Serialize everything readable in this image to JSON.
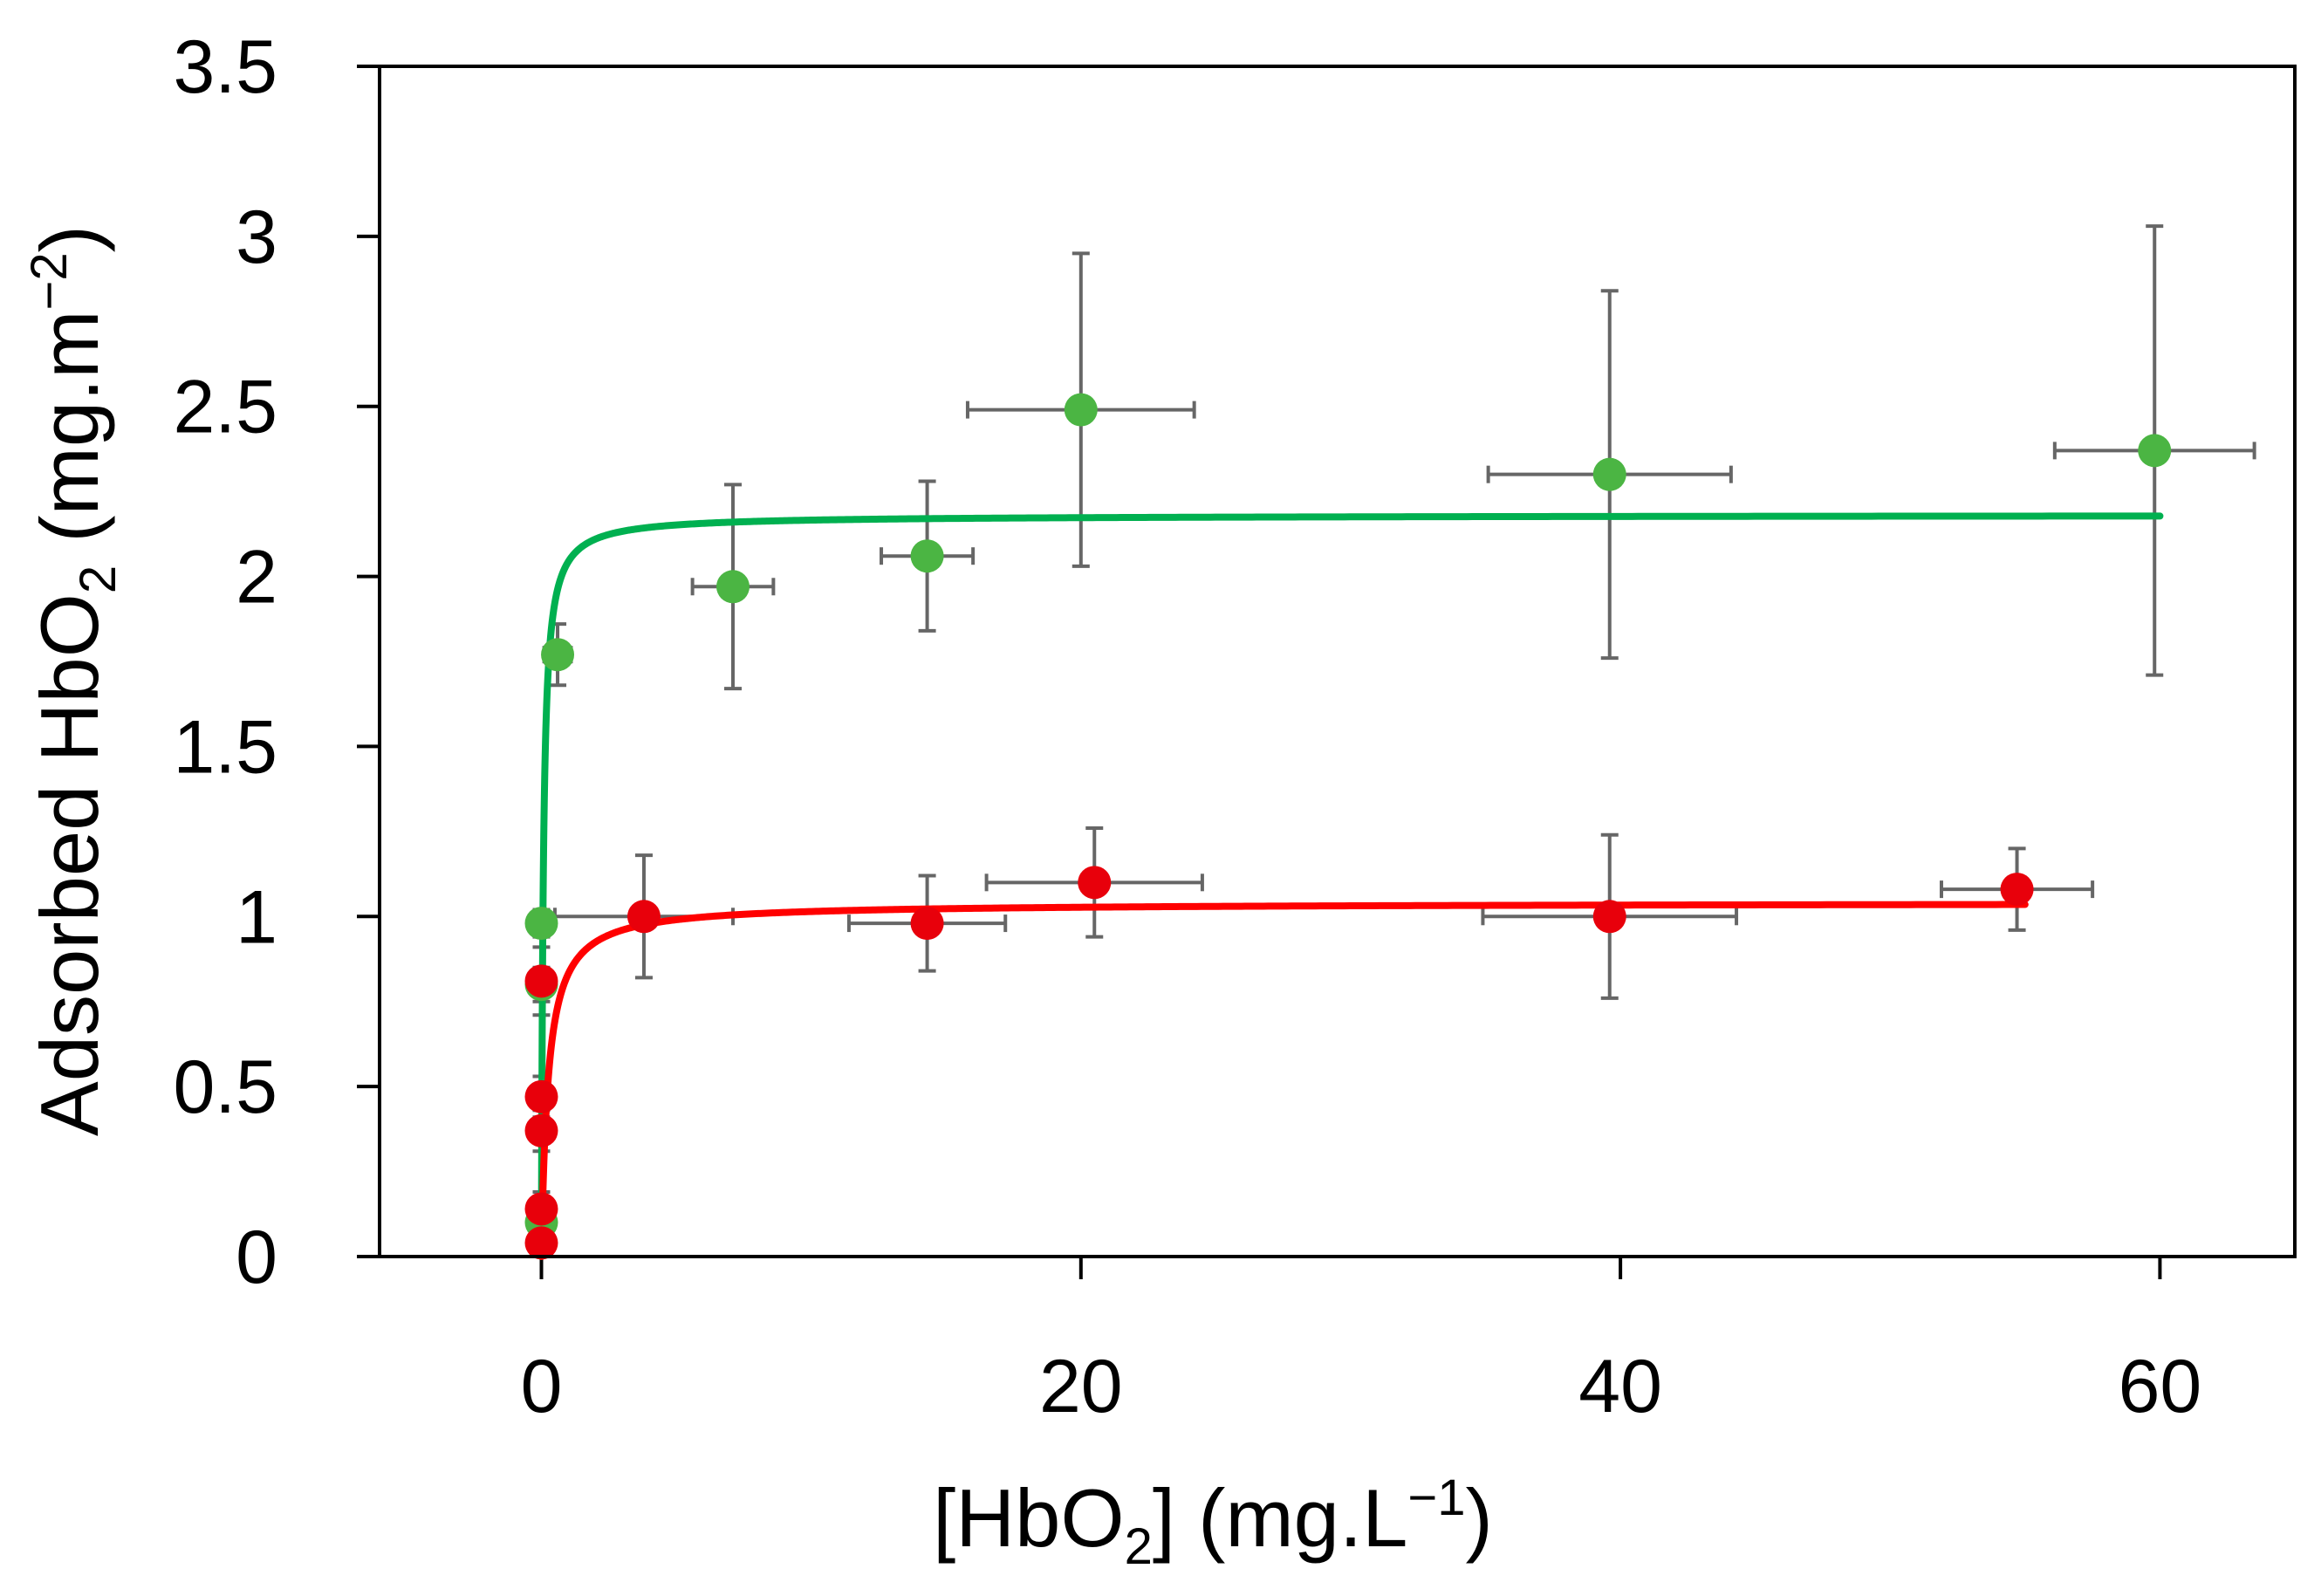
{
  "chart_data": {
    "type": "scatter",
    "xlabel": {
      "pre": "[HbO",
      "sub": "2",
      "mid": "] (mg.L",
      "sup": "−1",
      "post": ")"
    },
    "ylabel": {
      "pre": "Adsorbed HbO",
      "sub": "2",
      "mid": " (mg.m",
      "sup": "−2",
      "post": ")"
    },
    "xlim": [
      -6,
      65
    ],
    "ylim": [
      0,
      3.5
    ],
    "xticks": [
      0,
      20,
      40,
      60
    ],
    "xtick_labels": [
      "0",
      "20",
      "40",
      "60"
    ],
    "yticks": [
      0,
      0.5,
      1,
      1.5,
      2,
      2.5,
      3,
      3.5
    ],
    "ytick_labels": [
      "0",
      "0.5",
      "1",
      "1.5",
      "2",
      "2.5",
      "3",
      "3.5"
    ],
    "colors": {
      "green_points": "#4bb543",
      "green_line": "#00b050",
      "red_points": "#e8000b",
      "red_line": "#ff0000",
      "error_bars": "#666666",
      "axes": "#000000"
    },
    "series": [
      {
        "name": "green",
        "points": [
          {
            "x": 0.0,
            "y": 0.1,
            "xerr": 0.0,
            "yerr": 0.05
          },
          {
            "x": 0.0,
            "y": 0.8,
            "xerr": 0.0,
            "yerr": 0.05
          },
          {
            "x": 0.0,
            "y": 0.98,
            "xerr": 0.15,
            "yerr": 0.04
          },
          {
            "x": 0.6,
            "y": 1.77,
            "xerr": 0.5,
            "yerr": 0.09
          },
          {
            "x": 7.1,
            "y": 1.97,
            "xerr": 1.5,
            "yerr": 0.3
          },
          {
            "x": 14.3,
            "y": 2.06,
            "xerr": 1.7,
            "yerr": 0.22
          },
          {
            "x": 20.0,
            "y": 2.49,
            "xerr": 4.2,
            "yerr": 0.46
          },
          {
            "x": 39.6,
            "y": 2.3,
            "xerr": 4.5,
            "yerr": 0.54
          },
          {
            "x": 59.8,
            "y": 2.37,
            "xerr": 3.7,
            "yerr": 0.66
          }
        ],
        "fit": {
          "qmax": 2.18,
          "k": 15,
          "x_end": 60
        }
      },
      {
        "name": "red",
        "points": [
          {
            "x": 0.0,
            "y": 0.04,
            "xerr": 0.0,
            "yerr": 0.02
          },
          {
            "x": 0.0,
            "y": 0.14,
            "xerr": 0.0,
            "yerr": 0.05
          },
          {
            "x": 0.0,
            "y": 0.37,
            "xerr": 0.0,
            "yerr": 0.06
          },
          {
            "x": 0.0,
            "y": 0.47,
            "xerr": 0.0,
            "yerr": 0.06
          },
          {
            "x": 0.0,
            "y": 0.81,
            "xerr": 0.0,
            "yerr": 0.1
          },
          {
            "x": 3.8,
            "y": 1.0,
            "xerr": 3.3,
            "yerr": 0.18
          },
          {
            "x": 14.3,
            "y": 0.98,
            "xerr": 2.9,
            "yerr": 0.14
          },
          {
            "x": 20.5,
            "y": 1.1,
            "xerr": 4.0,
            "yerr": 0.16
          },
          {
            "x": 39.6,
            "y": 1.0,
            "xerr": 4.7,
            "yerr": 0.24
          },
          {
            "x": 54.7,
            "y": 1.08,
            "xerr": 2.8,
            "yerr": 0.12
          }
        ],
        "fit": {
          "qmax": 1.04,
          "k": 4,
          "x_end": 55
        }
      }
    ]
  }
}
